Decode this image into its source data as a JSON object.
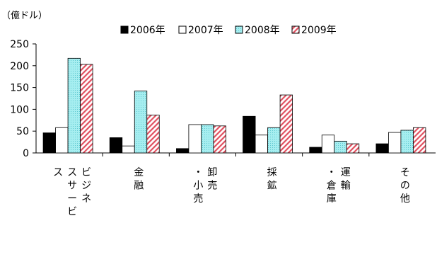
{
  "chart_data": {
    "type": "bar",
    "title": "",
    "unit_label": "（億ドル）",
    "xlabel": "",
    "ylabel": "",
    "ylim": [
      0,
      250
    ],
    "yticks": [
      0,
      50,
      100,
      150,
      200,
      250
    ],
    "grid": false,
    "legend_position": "top",
    "categories": [
      "ビジネスサービス",
      "金融",
      "卸売・小売",
      "採鉱",
      "運輸・倉庫",
      "その他"
    ],
    "category_columns": [
      [
        "ビジネ",
        "スサービ",
        "ス"
      ],
      [
        "金融"
      ],
      [
        "卸売",
        "・小売"
      ],
      [
        "採鉱"
      ],
      [
        "運輸",
        "・倉庫"
      ],
      [
        "その他"
      ]
    ],
    "series": [
      {
        "name": "2006年",
        "style": "solid-black",
        "values": [
          46,
          35,
          10,
          84,
          13,
          21
        ]
      },
      {
        "name": "2007年",
        "style": "white",
        "values": [
          58,
          16,
          65,
          41,
          41,
          47
        ]
      },
      {
        "name": "2008年",
        "style": "cyan-dotted",
        "color": "#a6eef0",
        "values": [
          217,
          142,
          65,
          58,
          27,
          52
        ]
      },
      {
        "name": "2009年",
        "style": "red-hatched",
        "color": "#e05060",
        "values": [
          203,
          87,
          62,
          133,
          21,
          58
        ]
      }
    ]
  }
}
